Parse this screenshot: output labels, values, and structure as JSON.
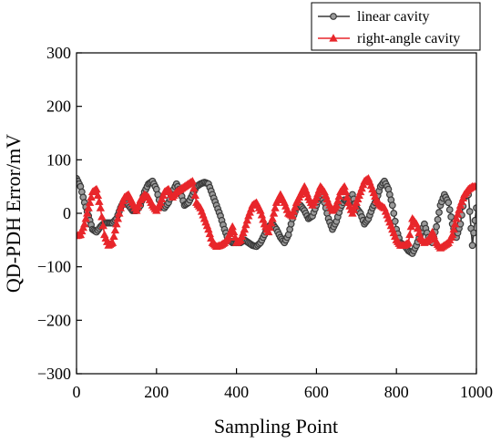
{
  "chart_data": {
    "type": "line",
    "title": "",
    "xlabel": "Sampling Point",
    "ylabel": "QD-PDH Error/mV",
    "xlim": [
      0,
      1000
    ],
    "ylim": [
      -300,
      300
    ],
    "xticks": [
      0,
      200,
      400,
      600,
      800,
      1000
    ],
    "yticks": [
      -300,
      -200,
      -100,
      0,
      100,
      200,
      300
    ],
    "xtick_labels": [
      "0",
      "200",
      "400",
      "600",
      "800",
      "1000"
    ],
    "ytick_labels": [
      "−300",
      "−200",
      "−100",
      "0",
      "100",
      "200",
      "300"
    ],
    "grid": false,
    "legend_position": "top-right",
    "series": [
      {
        "name": "linear cavity",
        "color": "#3a3a3a",
        "marker": "circle",
        "x": [
          0,
          10,
          20,
          30,
          40,
          50,
          60,
          70,
          80,
          90,
          100,
          110,
          120,
          130,
          140,
          150,
          160,
          170,
          180,
          190,
          200,
          210,
          220,
          230,
          240,
          250,
          260,
          270,
          280,
          290,
          300,
          310,
          320,
          330,
          340,
          350,
          360,
          370,
          380,
          390,
          400,
          410,
          420,
          430,
          440,
          450,
          460,
          470,
          480,
          490,
          500,
          510,
          520,
          530,
          540,
          550,
          560,
          570,
          580,
          590,
          600,
          610,
          620,
          630,
          640,
          650,
          660,
          670,
          680,
          690,
          700,
          710,
          720,
          730,
          740,
          750,
          760,
          770,
          780,
          790,
          800,
          810,
          820,
          830,
          840,
          850,
          860,
          870,
          880,
          890,
          900,
          910,
          920,
          930,
          940,
          950,
          960,
          970,
          980,
          990,
          1000
        ],
        "y": [
          65,
          50,
          20,
          -5,
          -30,
          -35,
          -25,
          -18,
          -18,
          -18,
          -10,
          10,
          25,
          15,
          5,
          5,
          15,
          40,
          55,
          60,
          45,
          15,
          10,
          20,
          40,
          55,
          40,
          15,
          20,
          35,
          50,
          55,
          58,
          55,
          35,
          15,
          -5,
          -30,
          -50,
          -55,
          -55,
          -55,
          -50,
          -55,
          -60,
          -62,
          -55,
          -40,
          -25,
          -20,
          -30,
          -45,
          -55,
          -40,
          -10,
          10,
          15,
          5,
          -10,
          -5,
          15,
          35,
          20,
          -10,
          -30,
          -15,
          10,
          25,
          20,
          35,
          10,
          0,
          -20,
          -10,
          10,
          25,
          50,
          60,
          45,
          15,
          -30,
          -55,
          -60,
          -70,
          -75,
          -60,
          -40,
          -20,
          -45,
          -55,
          -25,
          15,
          35,
          20,
          -20,
          -45,
          -20,
          30,
          35,
          -60,
          10
        ]
      },
      {
        "name": "right-angle cavity",
        "color": "#e8262b",
        "marker": "triangle",
        "x": [
          0,
          10,
          20,
          30,
          40,
          50,
          60,
          70,
          80,
          90,
          100,
          110,
          120,
          130,
          140,
          150,
          160,
          170,
          180,
          190,
          200,
          210,
          220,
          230,
          240,
          250,
          260,
          270,
          280,
          290,
          300,
          310,
          320,
          330,
          340,
          350,
          360,
          370,
          380,
          390,
          400,
          410,
          420,
          430,
          440,
          450,
          460,
          470,
          480,
          490,
          500,
          510,
          520,
          530,
          540,
          550,
          560,
          570,
          580,
          590,
          600,
          610,
          620,
          630,
          640,
          650,
          660,
          670,
          680,
          690,
          700,
          710,
          720,
          730,
          740,
          750,
          760,
          770,
          780,
          790,
          800,
          810,
          820,
          830,
          840,
          850,
          860,
          870,
          880,
          890,
          900,
          910,
          920,
          930,
          940,
          950,
          960,
          970,
          980,
          990,
          1000
        ],
        "y": [
          -42,
          -40,
          -20,
          10,
          40,
          45,
          10,
          -40,
          -60,
          -55,
          -20,
          10,
          30,
          35,
          20,
          5,
          25,
          35,
          30,
          15,
          5,
          20,
          40,
          45,
          30,
          40,
          45,
          50,
          55,
          60,
          20,
          10,
          -10,
          -30,
          -55,
          -62,
          -60,
          -55,
          -45,
          -25,
          -55,
          -50,
          -30,
          -5,
          15,
          20,
          5,
          -20,
          -35,
          -10,
          20,
          35,
          20,
          0,
          -5,
          20,
          35,
          50,
          30,
          15,
          30,
          50,
          40,
          20,
          5,
          15,
          40,
          50,
          20,
          0,
          20,
          40,
          60,
          65,
          45,
          25,
          15,
          10,
          -10,
          -30,
          -50,
          -60,
          -60,
          -55,
          -10,
          -20,
          -45,
          -55,
          -50,
          -35,
          -55,
          -65,
          -60,
          -55,
          -40,
          -10,
          15,
          35,
          45,
          50,
          50
        ]
      }
    ]
  }
}
